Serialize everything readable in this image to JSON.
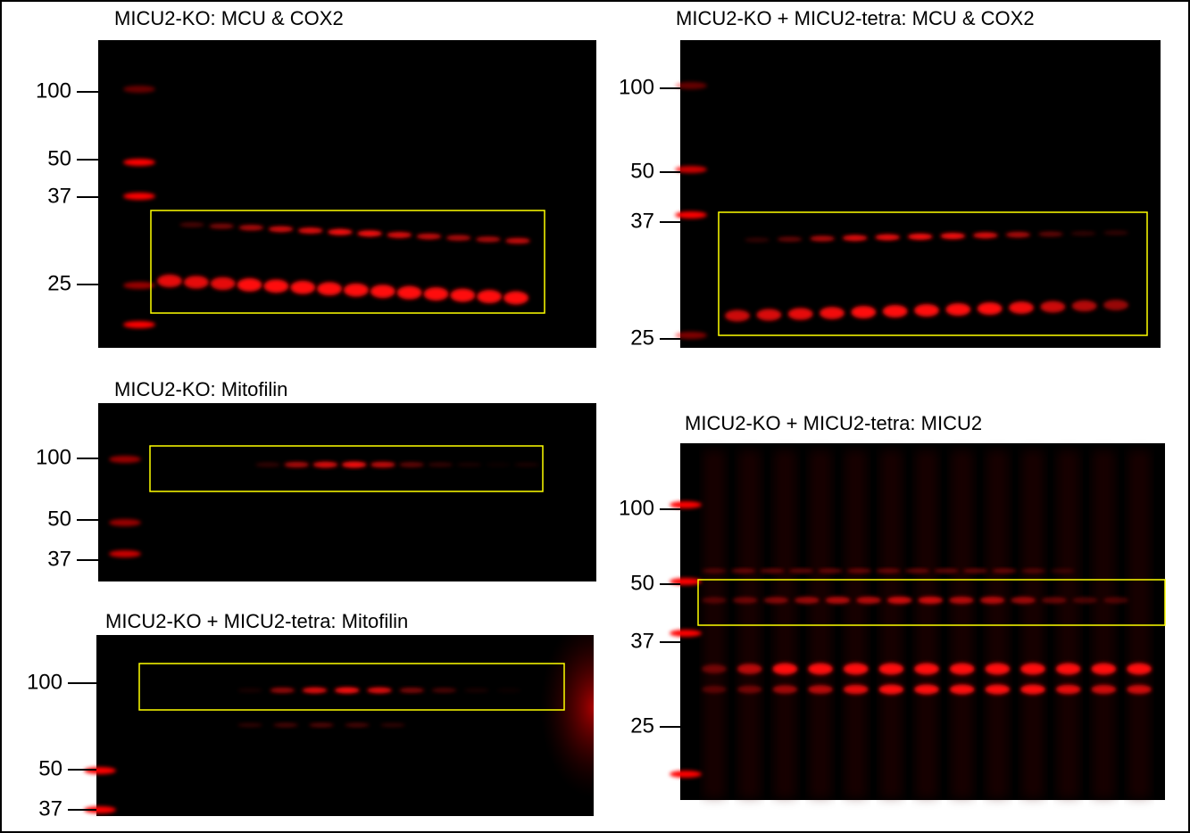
{
  "panels": [
    {
      "title": "MICU2-KO: MCU & COX2",
      "markers": [
        100,
        50,
        37,
        25
      ]
    },
    {
      "title": "MICU2-KO + MICU2-tetra: MCU & COX2",
      "markers": [
        100,
        50,
        37,
        25
      ]
    },
    {
      "title": "MICU2-KO: Mitofilin",
      "markers": [
        100,
        50,
        37
      ]
    },
    {
      "title": "MICU2-KO + MICU2-tetra: Mitofilin",
      "markers": [
        100,
        50,
        37
      ]
    },
    {
      "title": "MICU2-KO + MICU2-tetra: MICU2",
      "markers": [
        100,
        50,
        37,
        25
      ]
    }
  ]
}
